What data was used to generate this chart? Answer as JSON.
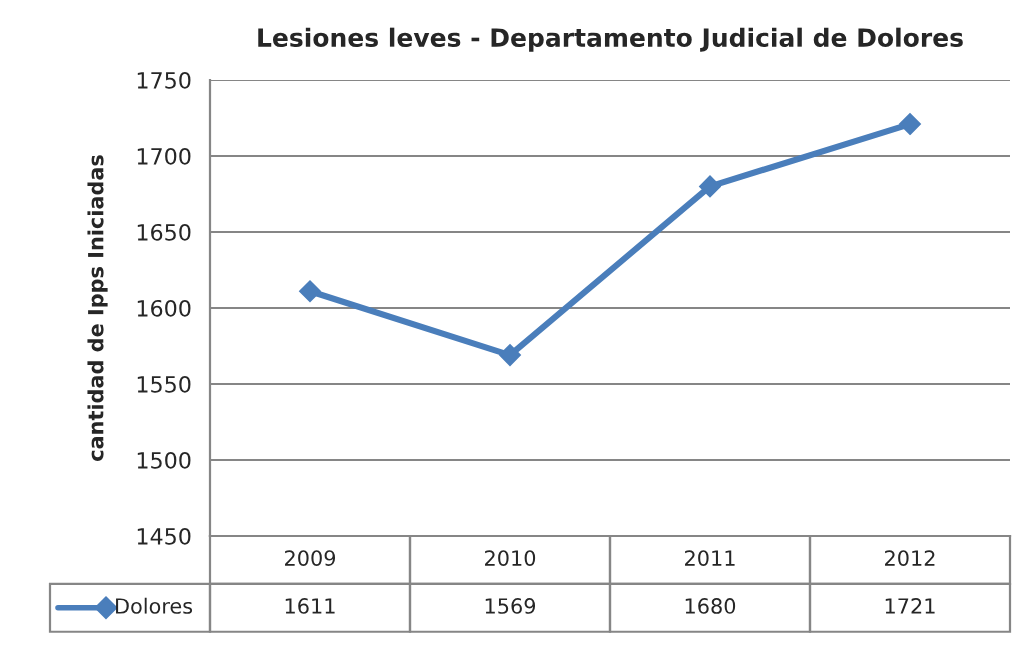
{
  "chart_data": {
    "type": "line",
    "title": "Lesiones leves - Departamento Judicial de Dolores",
    "ylabel": "cantidad de Ipps Iniciadas",
    "categories": [
      "2009",
      "2010",
      "2011",
      "2012"
    ],
    "series": [
      {
        "name": "Dolores",
        "color": "#4a7ebb",
        "values": [
          1611,
          1569,
          1680,
          1721
        ]
      }
    ],
    "ylim": [
      1450,
      1750
    ],
    "yticks": [
      1450,
      1500,
      1550,
      1600,
      1650,
      1700,
      1750
    ],
    "grid": "y",
    "marker": "diamond",
    "line_style": "solid",
    "data_labels": true,
    "legend": "bottom"
  }
}
